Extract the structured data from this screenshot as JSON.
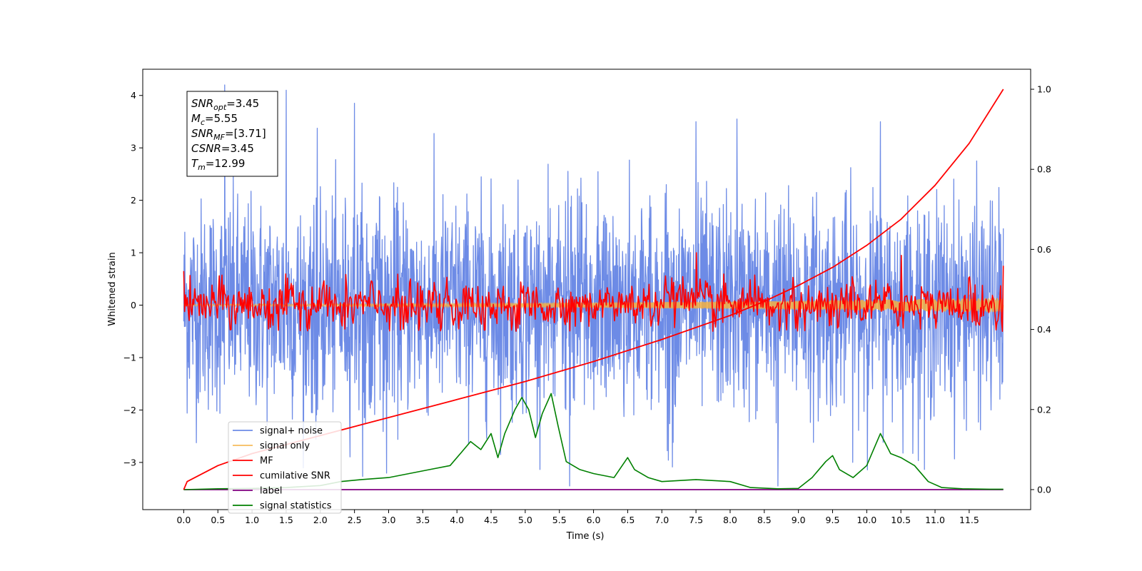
{
  "chart_data": {
    "type": "line",
    "xlabel": "Time (s)",
    "ylabel": "Whitened strain",
    "xlim": [
      -0.6,
      12.4
    ],
    "ylim": [
      -3.9,
      4.5
    ],
    "y2lim": [
      -0.05,
      1.05
    ],
    "x_ticks": [
      "0.0",
      "0.5",
      "1.0",
      "1.5",
      "2.0",
      "2.5",
      "3.0",
      "3.5",
      "4.0",
      "4.5",
      "5.0",
      "5.5",
      "6.0",
      "6.5",
      "7.0",
      "7.5",
      "8.0",
      "8.5",
      "9.0",
      "9.5",
      "10.0",
      "10.5",
      "11.0",
      "11.5"
    ],
    "x_tick_values": [
      0,
      0.5,
      1,
      1.5,
      2,
      2.5,
      3,
      3.5,
      4,
      4.5,
      5,
      5.5,
      6,
      6.5,
      7,
      7.5,
      8,
      8.5,
      9,
      9.5,
      10,
      10.5,
      11,
      11.5
    ],
    "y_ticks": [
      "4",
      "3",
      "2",
      "1",
      "0",
      "−1",
      "−2",
      "−3"
    ],
    "y_tick_values": [
      4,
      3,
      2,
      1,
      0,
      -1,
      -2,
      -3
    ],
    "y2_ticks": [
      "1.0",
      "0.8",
      "0.6",
      "0.4",
      "0.2",
      "0.0"
    ],
    "y2_tick_values": [
      1.0,
      0.8,
      0.6,
      0.4,
      0.2,
      0.0
    ],
    "legend_placement": "lower-left",
    "series": [
      {
        "name": "signal+ noise",
        "color": "#6d8be6",
        "axis": "left",
        "x_range": [
          0,
          12
        ],
        "amplitude_std": 1.0,
        "peaks": [
          [
            0.6,
            4.2
          ],
          [
            1.5,
            4.1
          ],
          [
            2.5,
            3.85
          ],
          [
            7.5,
            3.5
          ],
          [
            8.1,
            3.55
          ],
          [
            10.2,
            3.5
          ],
          [
            8.7,
            -3.45
          ],
          [
            5.65,
            -3.45
          ]
        ]
      },
      {
        "name": "signal only",
        "color": "#f5b041",
        "axis": "left",
        "x_range": [
          0,
          12
        ],
        "amplitude_growth": [
          0.02,
          0.14
        ]
      },
      {
        "name": "MF",
        "color": "#ff0000",
        "axis": "left",
        "x_range": [
          0,
          12
        ],
        "amplitude_std": 0.25,
        "peaks": [
          [
            0.0,
            0.65
          ],
          [
            7.5,
            1.0
          ],
          [
            10.5,
            0.95
          ],
          [
            12.0,
            0.75
          ]
        ]
      },
      {
        "name": "cumilative SNR",
        "color": "#ff0000",
        "axis": "right",
        "x": [
          0,
          0.05,
          0.5,
          1,
          2,
          3,
          4,
          5,
          6,
          7,
          8,
          8.5,
          9,
          9.5,
          10,
          10.5,
          11,
          11.5,
          12
        ],
        "y": [
          0,
          0.02,
          0.06,
          0.09,
          0.135,
          0.18,
          0.225,
          0.27,
          0.32,
          0.375,
          0.435,
          0.47,
          0.51,
          0.555,
          0.61,
          0.675,
          0.76,
          0.865,
          1.0
        ]
      },
      {
        "name": "label",
        "color": "#800080",
        "axis": "right",
        "x": [
          0,
          12
        ],
        "y": [
          0,
          0
        ]
      },
      {
        "name": "signal statistics",
        "color": "#008000",
        "axis": "right",
        "x": [
          0,
          0.5,
          1,
          1.5,
          2,
          2.3,
          2.6,
          3,
          3.3,
          3.6,
          3.9,
          4.05,
          4.2,
          4.35,
          4.5,
          4.6,
          4.7,
          4.85,
          4.95,
          5.05,
          5.15,
          5.25,
          5.38,
          5.48,
          5.6,
          5.8,
          6.0,
          6.3,
          6.5,
          6.6,
          6.8,
          7.0,
          7.5,
          8.0,
          8.3,
          8.7,
          9.0,
          9.2,
          9.4,
          9.5,
          9.6,
          9.8,
          10.0,
          10.2,
          10.35,
          10.5,
          10.7,
          10.9,
          11.1,
          11.4,
          11.8,
          12.0
        ],
        "y": [
          0,
          0.002,
          0.003,
          0.005,
          0.01,
          0.02,
          0.025,
          0.03,
          0.04,
          0.05,
          0.06,
          0.09,
          0.12,
          0.1,
          0.14,
          0.08,
          0.14,
          0.2,
          0.23,
          0.2,
          0.13,
          0.19,
          0.24,
          0.16,
          0.07,
          0.05,
          0.04,
          0.03,
          0.08,
          0.05,
          0.03,
          0.02,
          0.025,
          0.02,
          0.005,
          0.002,
          0.003,
          0.03,
          0.07,
          0.085,
          0.05,
          0.03,
          0.06,
          0.14,
          0.09,
          0.08,
          0.06,
          0.02,
          0.005,
          0.002,
          0.001,
          0.001
        ]
      }
    ],
    "info_box": [
      {
        "main": "SNR",
        "sub": "opt",
        "value": "=3.45"
      },
      {
        "main": "M",
        "sub": "c",
        "value": "=5.55"
      },
      {
        "main": "SNR",
        "sub": "MF",
        "value": "=[3.71]"
      },
      {
        "main": "CSNR",
        "sub": "",
        "value": "=3.45"
      },
      {
        "main": "T",
        "sub": "m",
        "value": "=12.99"
      }
    ]
  }
}
